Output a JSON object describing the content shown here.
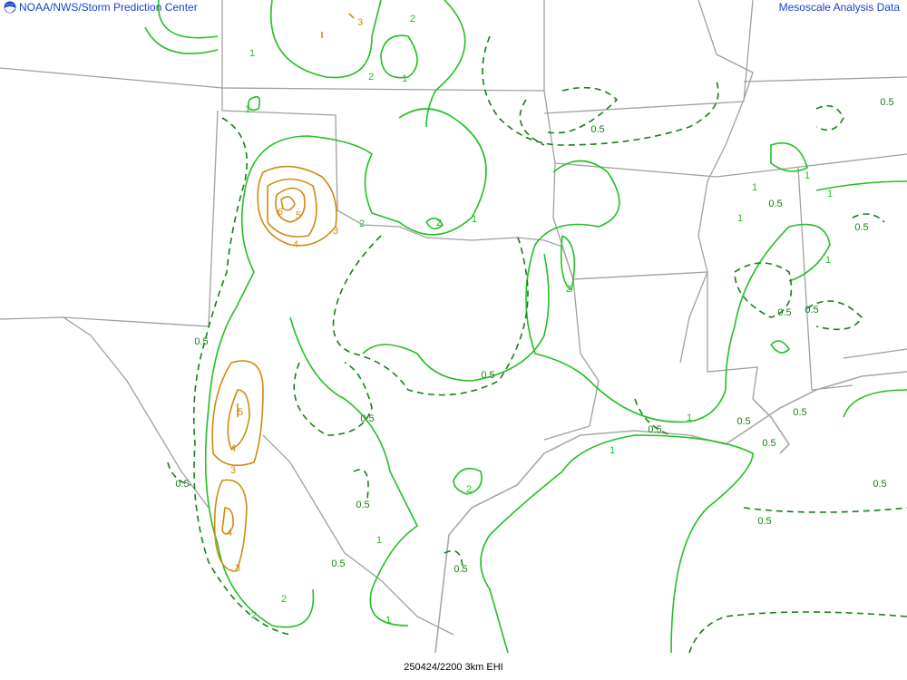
{
  "header": {
    "left_title": "NOAA/NWS/Storm Prediction Center",
    "right_title": "Mesoscale Analysis Data",
    "logo_icon": "noaa-logo-icon"
  },
  "footer": {
    "caption": "250424/2200 3km EHI"
  },
  "colors": {
    "header_text": "#1a3fcf",
    "contour_low": "#22c022",
    "contour_dashed": "#178017",
    "contour_high": "#d08a10",
    "borders": "#a0a0a0"
  },
  "contour_labels": [
    "3",
    "2",
    "1",
    "2",
    "1",
    "1",
    "1",
    "0.5",
    "0.5",
    "0.5",
    "6",
    "5",
    "4",
    "3",
    "2",
    "2",
    "2",
    "1",
    "0.5",
    "0.5",
    "0.5",
    "1",
    "0.5",
    "0.5",
    "1",
    "1",
    "0.5",
    "0.5",
    "0.5",
    "5",
    "4",
    "3",
    "4",
    "3",
    "0.5",
    "0.5",
    "0.5",
    "1",
    "0.5",
    "2",
    "2",
    "2",
    "1",
    "0.5",
    "1",
    "0.5",
    "1",
    "0.5",
    "0.5",
    "1"
  ]
}
